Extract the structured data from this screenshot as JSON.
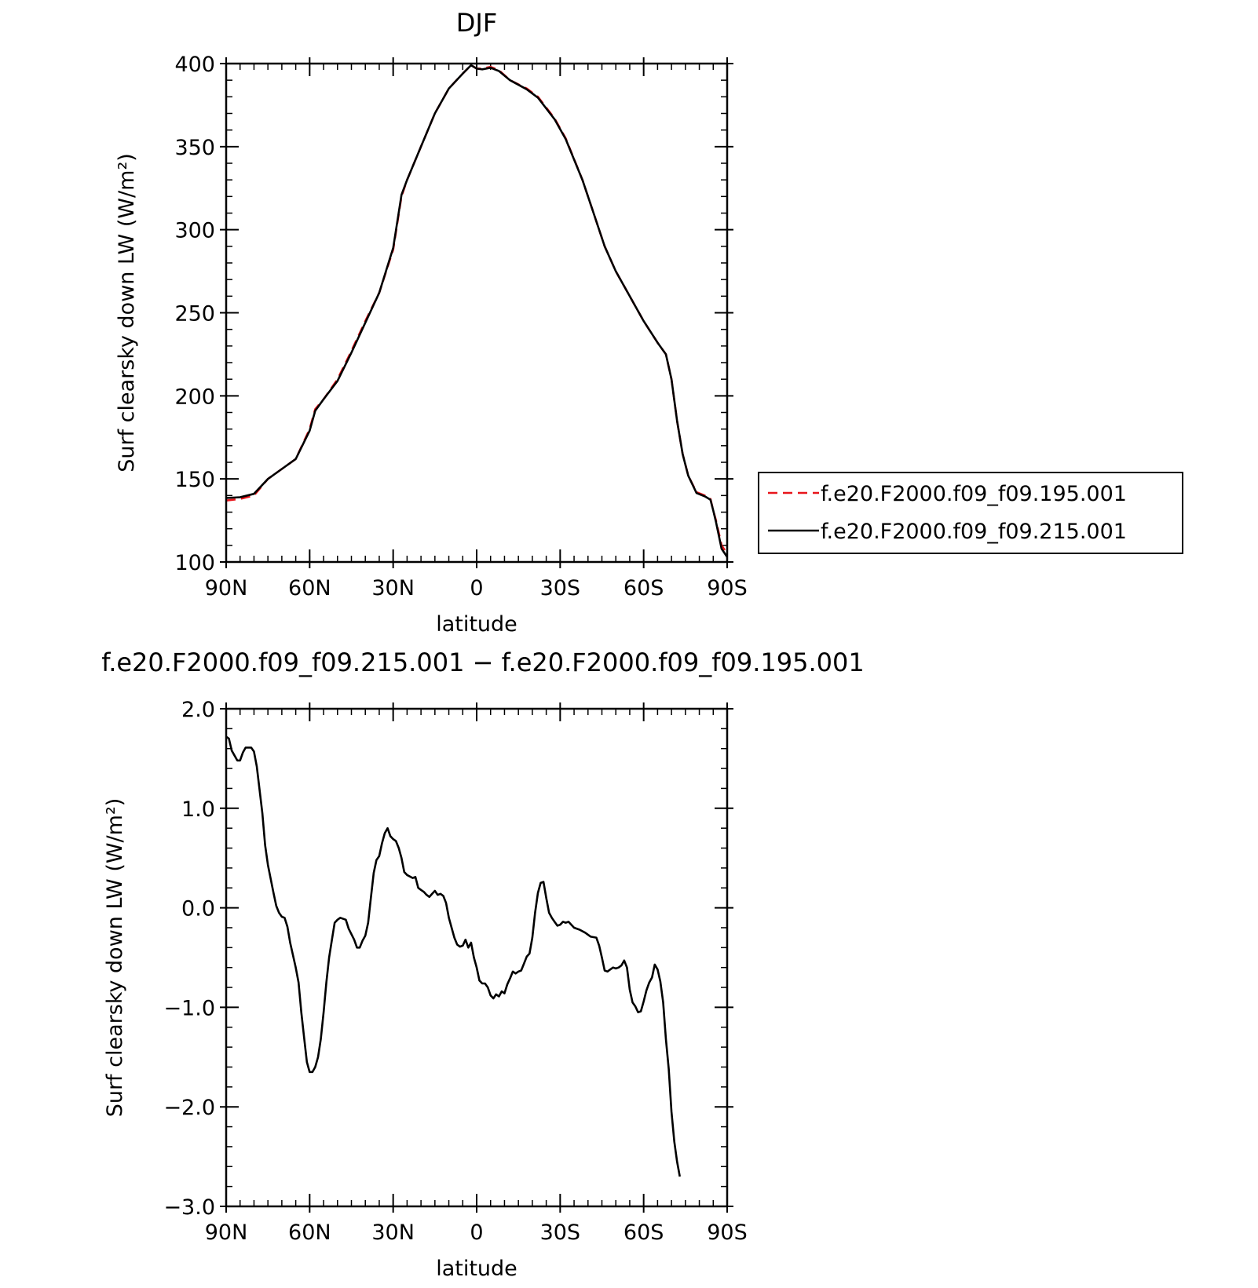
{
  "chart_data": [
    {
      "type": "line",
      "title": "DJF",
      "xlabel": "latitude",
      "ylabel": "Surf clearsky down LW (W/m²)",
      "xlim": [
        90,
        -90
      ],
      "ylim": [
        100,
        400
      ],
      "xticks": [
        {
          "value": 90,
          "label": "90N"
        },
        {
          "value": 60,
          "label": "60N"
        },
        {
          "value": 30,
          "label": "30N"
        },
        {
          "value": 0,
          "label": "0"
        },
        {
          "value": -30,
          "label": "30S"
        },
        {
          "value": -60,
          "label": "60S"
        },
        {
          "value": -90,
          "label": "90S"
        }
      ],
      "yticks": [
        {
          "value": 100,
          "label": "100"
        },
        {
          "value": 150,
          "label": "150"
        },
        {
          "value": 200,
          "label": "200"
        },
        {
          "value": 250,
          "label": "250"
        },
        {
          "value": 300,
          "label": "300"
        },
        {
          "value": 350,
          "label": "350"
        },
        {
          "value": 400,
          "label": "400"
        }
      ],
      "legend": "right",
      "grid": false,
      "series": [
        {
          "name": "f.e20.F2000.f09_f09.195.001",
          "color": "#e8151b",
          "dash": "dashed",
          "points": [
            [
              90,
              137
            ],
            [
              85,
              138
            ],
            [
              80,
              140
            ],
            [
              75,
              150
            ],
            [
              70,
              156
            ],
            [
              65,
              162
            ],
            [
              60,
              180
            ],
            [
              58,
              192
            ],
            [
              55,
              198
            ],
            [
              50,
              210
            ],
            [
              45,
              227
            ],
            [
              40,
              245
            ],
            [
              35,
              262
            ],
            [
              30,
              288
            ],
            [
              27,
              320
            ],
            [
              25,
              330
            ],
            [
              20,
              350
            ],
            [
              15,
              370
            ],
            [
              10,
              385
            ],
            [
              5,
              394
            ],
            [
              2,
              399
            ],
            [
              0,
              397
            ],
            [
              -2,
              397
            ],
            [
              -5,
              398
            ],
            [
              -8,
              396
            ],
            [
              -12,
              390
            ],
            [
              -18,
              385
            ],
            [
              -22,
              380
            ],
            [
              -28,
              367
            ],
            [
              -32,
              355
            ],
            [
              -38,
              330
            ],
            [
              -42,
              310
            ],
            [
              -46,
              290
            ],
            [
              -50,
              275
            ],
            [
              -55,
              260
            ],
            [
              -60,
              245
            ],
            [
              -65,
              232
            ],
            [
              -68,
              225
            ],
            [
              -70,
              210
            ],
            [
              -72,
              185
            ],
            [
              -74,
              165
            ],
            [
              -76,
              152
            ],
            [
              -79,
              142
            ],
            [
              -82,
              140
            ],
            [
              -84,
              138
            ],
            [
              -85,
              131
            ],
            [
              -86,
              125
            ],
            [
              -88,
              110
            ],
            [
              -90,
              105
            ]
          ]
        },
        {
          "name": "f.e20.F2000.f09_f09.215.001",
          "color": "#000000",
          "dash": "solid",
          "points": [
            [
              90,
              138.5
            ],
            [
              85,
              139
            ],
            [
              80,
              141
            ],
            [
              75,
              150
            ],
            [
              70,
              156
            ],
            [
              65,
              162
            ],
            [
              60,
              179
            ],
            [
              58,
              191
            ],
            [
              55,
              198
            ],
            [
              50,
              209
            ],
            [
              45,
              226
            ],
            [
              40,
              244
            ],
            [
              35,
              262
            ],
            [
              30,
              289
            ],
            [
              27,
              321
            ],
            [
              25,
              330
            ],
            [
              20,
              350
            ],
            [
              15,
              370
            ],
            [
              10,
              385
            ],
            [
              5,
              394
            ],
            [
              2,
              399
            ],
            [
              0,
              397
            ],
            [
              -2,
              396.5
            ],
            [
              -5,
              397.5
            ],
            [
              -8,
              395.5
            ],
            [
              -12,
              390
            ],
            [
              -18,
              384.5
            ],
            [
              -22,
              379.5
            ],
            [
              -28,
              366.5
            ],
            [
              -32,
              354.5
            ],
            [
              -38,
              330
            ],
            [
              -42,
              310
            ],
            [
              -46,
              290
            ],
            [
              -50,
              275
            ],
            [
              -55,
              260
            ],
            [
              -60,
              245
            ],
            [
              -65,
              232
            ],
            [
              -68,
              225
            ],
            [
              -70,
              210
            ],
            [
              -72,
              185
            ],
            [
              -74,
              165
            ],
            [
              -76,
              152
            ],
            [
              -79,
              141.5
            ],
            [
              -82,
              139.5
            ],
            [
              -84,
              137.5
            ],
            [
              -85,
              131
            ],
            [
              -86,
              124
            ],
            [
              -88,
              108
            ],
            [
              -90,
              103
            ]
          ]
        }
      ]
    },
    {
      "type": "line",
      "title": "f.e20.F2000.f09_f09.215.001 − f.e20.F2000.f09_f09.195.001",
      "xlabel": "latitude",
      "ylabel": "Surf clearsky down LW (W/m²)",
      "xlim": [
        90,
        -90
      ],
      "ylim": [
        -3.0,
        2.0
      ],
      "xticks": [
        {
          "value": 90,
          "label": "90N"
        },
        {
          "value": 60,
          "label": "60N"
        },
        {
          "value": 30,
          "label": "30N"
        },
        {
          "value": 0,
          "label": "0"
        },
        {
          "value": -30,
          "label": "30S"
        },
        {
          "value": -60,
          "label": "60S"
        },
        {
          "value": -90,
          "label": "90S"
        }
      ],
      "yticks": [
        {
          "value": 2.0,
          "label": "2.0"
        },
        {
          "value": 1.0,
          "label": "1.0"
        },
        {
          "value": 0.0,
          "label": "0.0"
        },
        {
          "value": -1.0,
          "label": "−1.0"
        },
        {
          "value": -2.0,
          "label": "−2.0"
        },
        {
          "value": -3.0,
          "label": "−3.0"
        }
      ],
      "grid": false,
      "series": [
        {
          "color": "#000000",
          "dash": "solid",
          "points": [
            [
              90,
              1.72
            ],
            [
              89,
              1.7
            ],
            [
              88,
              1.58
            ],
            [
              86,
              1.48
            ],
            [
              85,
              1.48
            ],
            [
              84,
              1.56
            ],
            [
              83,
              1.61
            ],
            [
              81,
              1.61
            ],
            [
              80,
              1.57
            ],
            [
              79,
              1.42
            ],
            [
              77,
              0.95
            ],
            [
              76,
              0.63
            ],
            [
              75,
              0.43
            ],
            [
              73,
              0.15
            ],
            [
              72,
              0.02
            ],
            [
              71,
              -0.05
            ],
            [
              70,
              -0.09
            ],
            [
              69,
              -0.1
            ],
            [
              68,
              -0.19
            ],
            [
              67,
              -0.35
            ],
            [
              65,
              -0.6
            ],
            [
              64,
              -0.75
            ],
            [
              63,
              -1.05
            ],
            [
              62,
              -1.3
            ],
            [
              61,
              -1.55
            ],
            [
              60,
              -1.65
            ],
            [
              59,
              -1.65
            ],
            [
              58,
              -1.6
            ],
            [
              57,
              -1.5
            ],
            [
              56,
              -1.32
            ],
            [
              55,
              -1.05
            ],
            [
              54,
              -0.75
            ],
            [
              53,
              -0.5
            ],
            [
              52,
              -0.32
            ],
            [
              51,
              -0.15
            ],
            [
              50,
              -0.12
            ],
            [
              49,
              -0.1
            ],
            [
              47,
              -0.12
            ],
            [
              46,
              -0.21
            ],
            [
              44,
              -0.32
            ],
            [
              43,
              -0.4
            ],
            [
              42,
              -0.4
            ],
            [
              41,
              -0.33
            ],
            [
              40,
              -0.28
            ],
            [
              39,
              -0.15
            ],
            [
              38,
              0.1
            ],
            [
              37,
              0.35
            ],
            [
              36,
              0.48
            ],
            [
              35,
              0.52
            ],
            [
              34,
              0.65
            ],
            [
              33,
              0.75
            ],
            [
              32,
              0.8
            ],
            [
              31,
              0.72
            ],
            [
              30,
              0.69
            ],
            [
              29,
              0.67
            ],
            [
              28,
              0.6
            ],
            [
              27,
              0.5
            ],
            [
              26,
              0.36
            ],
            [
              25,
              0.33
            ],
            [
              23,
              0.3
            ],
            [
              22,
              0.31
            ],
            [
              21,
              0.2
            ],
            [
              20,
              0.18
            ],
            [
              19,
              0.16
            ],
            [
              18,
              0.13
            ],
            [
              17,
              0.11
            ],
            [
              16,
              0.14
            ],
            [
              15,
              0.17
            ],
            [
              14,
              0.13
            ],
            [
              13,
              0.14
            ],
            [
              12,
              0.12
            ],
            [
              11,
              0.05
            ],
            [
              10,
              -0.1
            ],
            [
              9,
              -0.2
            ],
            [
              8,
              -0.3
            ],
            [
              7,
              -0.37
            ],
            [
              6,
              -0.39
            ],
            [
              5,
              -0.38
            ],
            [
              4,
              -0.32
            ],
            [
              3,
              -0.4
            ],
            [
              2,
              -0.35
            ],
            [
              1,
              -0.5
            ],
            [
              0,
              -0.6
            ],
            [
              -1,
              -0.73
            ],
            [
              -2,
              -0.76
            ],
            [
              -3,
              -0.76
            ],
            [
              -4,
              -0.8
            ],
            [
              -5,
              -0.88
            ],
            [
              -6,
              -0.91
            ],
            [
              -7,
              -0.87
            ],
            [
              -8,
              -0.89
            ],
            [
              -9,
              -0.84
            ],
            [
              -10,
              -0.86
            ],
            [
              -11,
              -0.77
            ],
            [
              -12,
              -0.71
            ],
            [
              -13,
              -0.64
            ],
            [
              -14,
              -0.66
            ],
            [
              -15,
              -0.64
            ],
            [
              -16,
              -0.63
            ],
            [
              -17,
              -0.56
            ],
            [
              -18,
              -0.49
            ],
            [
              -19,
              -0.46
            ],
            [
              -20,
              -0.3
            ],
            [
              -21,
              -0.05
            ],
            [
              -22,
              0.15
            ],
            [
              -23,
              0.25
            ],
            [
              -24,
              0.26
            ],
            [
              -25,
              0.1
            ],
            [
              -26,
              -0.05
            ],
            [
              -27,
              -0.1
            ],
            [
              -28,
              -0.14
            ],
            [
              -29,
              -0.18
            ],
            [
              -30,
              -0.17
            ],
            [
              -31,
              -0.14
            ],
            [
              -32,
              -0.15
            ],
            [
              -33,
              -0.14
            ],
            [
              -35,
              -0.2
            ],
            [
              -37,
              -0.22
            ],
            [
              -39,
              -0.25
            ],
            [
              -41,
              -0.29
            ],
            [
              -43,
              -0.3
            ],
            [
              -44,
              -0.38
            ],
            [
              -45,
              -0.5
            ],
            [
              -46,
              -0.63
            ],
            [
              -47,
              -0.64
            ],
            [
              -48,
              -0.62
            ],
            [
              -49,
              -0.6
            ],
            [
              -50,
              -0.61
            ],
            [
              -51,
              -0.6
            ],
            [
              -52,
              -0.58
            ],
            [
              -53,
              -0.53
            ],
            [
              -54,
              -0.6
            ],
            [
              -55,
              -0.82
            ],
            [
              -56,
              -0.95
            ],
            [
              -57,
              -0.99
            ],
            [
              -58,
              -1.05
            ],
            [
              -59,
              -1.04
            ],
            [
              -60,
              -0.94
            ],
            [
              -61,
              -0.83
            ],
            [
              -62,
              -0.75
            ],
            [
              -63,
              -0.7
            ],
            [
              -64,
              -0.57
            ],
            [
              -65,
              -0.62
            ],
            [
              -66,
              -0.74
            ],
            [
              -67,
              -0.95
            ],
            [
              -68,
              -1.32
            ],
            [
              -69,
              -1.62
            ],
            [
              -70,
              -2.05
            ],
            [
              -71,
              -2.35
            ],
            [
              -72,
              -2.55
            ],
            [
              -73,
              -2.7
            ]
          ]
        }
      ]
    }
  ]
}
